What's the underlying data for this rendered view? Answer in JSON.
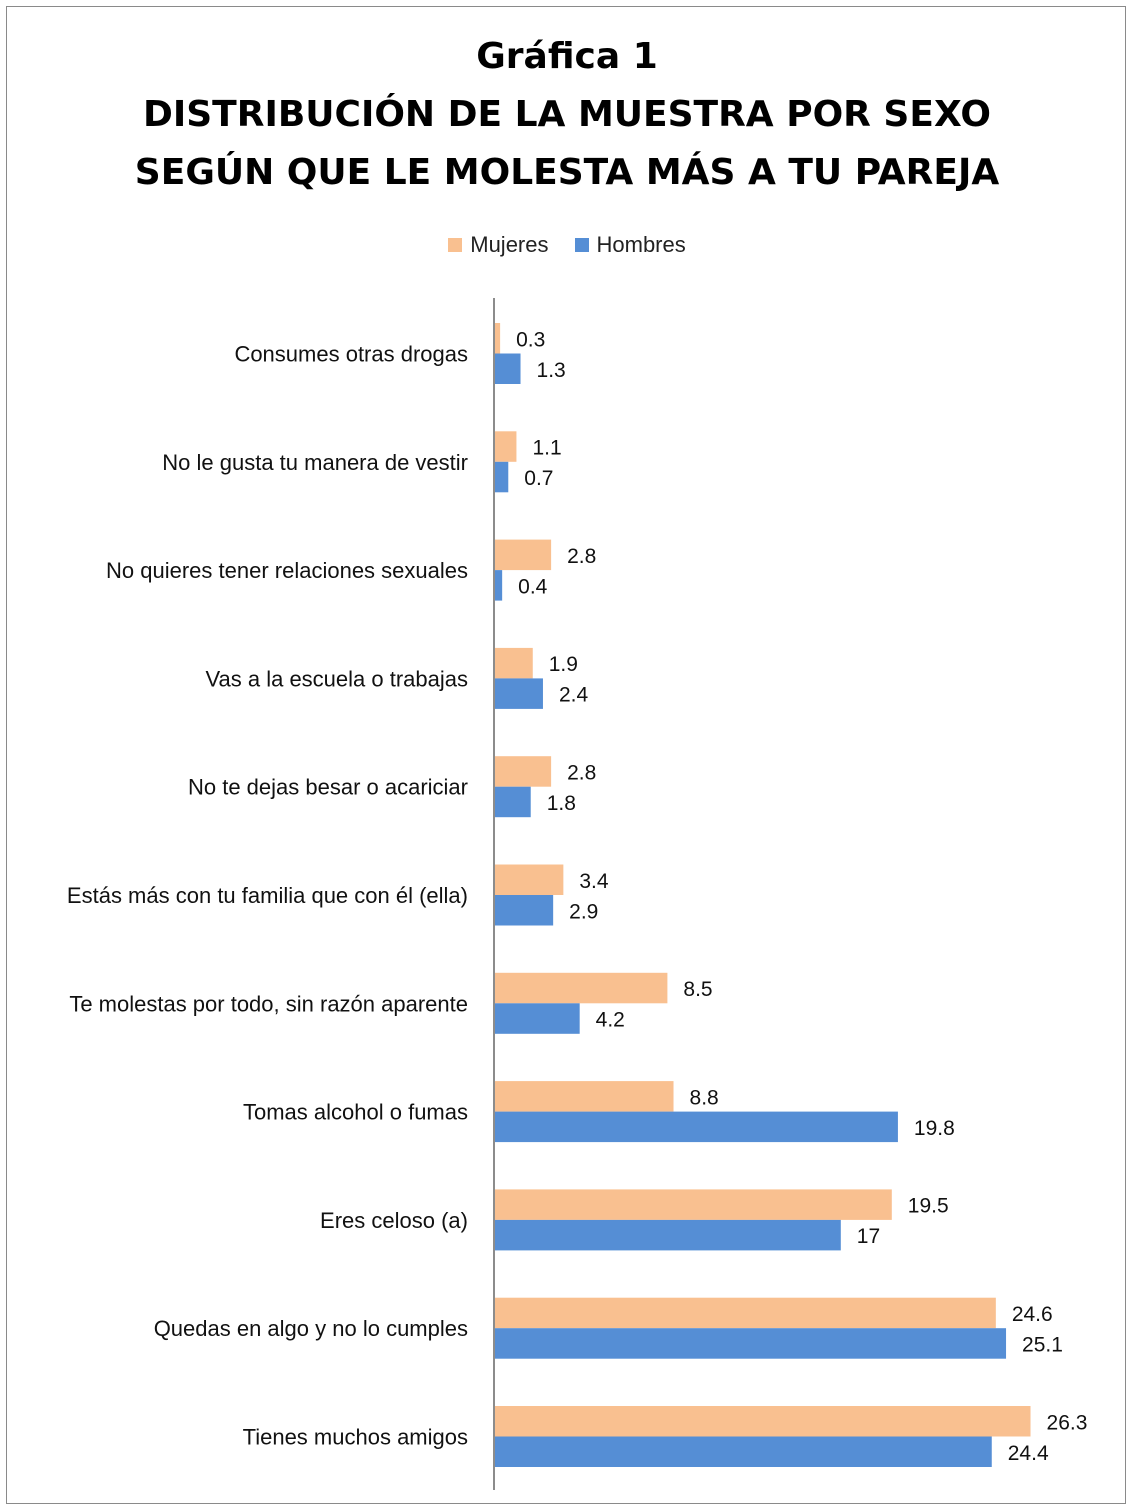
{
  "chart_data": {
    "type": "bar",
    "orientation": "horizontal",
    "title_line1": "Gráfica 1",
    "title_line2": "DISTRIBUCIÓN DE LA MUESTRA POR SEXO",
    "title_line3": "SEGÚN QUE LE MOLESTA MÁS A TU PAREJA",
    "legend_position": "top",
    "grid": false,
    "categories": [
      "Consumes otras drogas",
      "No le gusta tu manera de vestir",
      "No quieres tener relaciones sexuales",
      "Vas a la escuela o trabajas",
      "No te dejas besar o acariciar",
      "Estás más con tu familia que con él (ella)",
      "Te molestas por todo, sin razón aparente",
      "Tomas alcohol o fumas",
      "Eres celoso (a)",
      "Quedas en algo y no lo cumples",
      "Tienes muchos amigos"
    ],
    "series": [
      {
        "name": "Mujeres",
        "color": "#F9C090",
        "values": [
          0.3,
          1.1,
          2.8,
          1.9,
          2.8,
          3.4,
          8.5,
          8.8,
          19.5,
          24.6,
          26.3
        ]
      },
      {
        "name": "Hombres",
        "color": "#558ED5",
        "values": [
          1.3,
          0.7,
          0.4,
          2.4,
          1.8,
          2.9,
          4.2,
          19.8,
          17,
          25.1,
          24.4
        ]
      }
    ]
  }
}
